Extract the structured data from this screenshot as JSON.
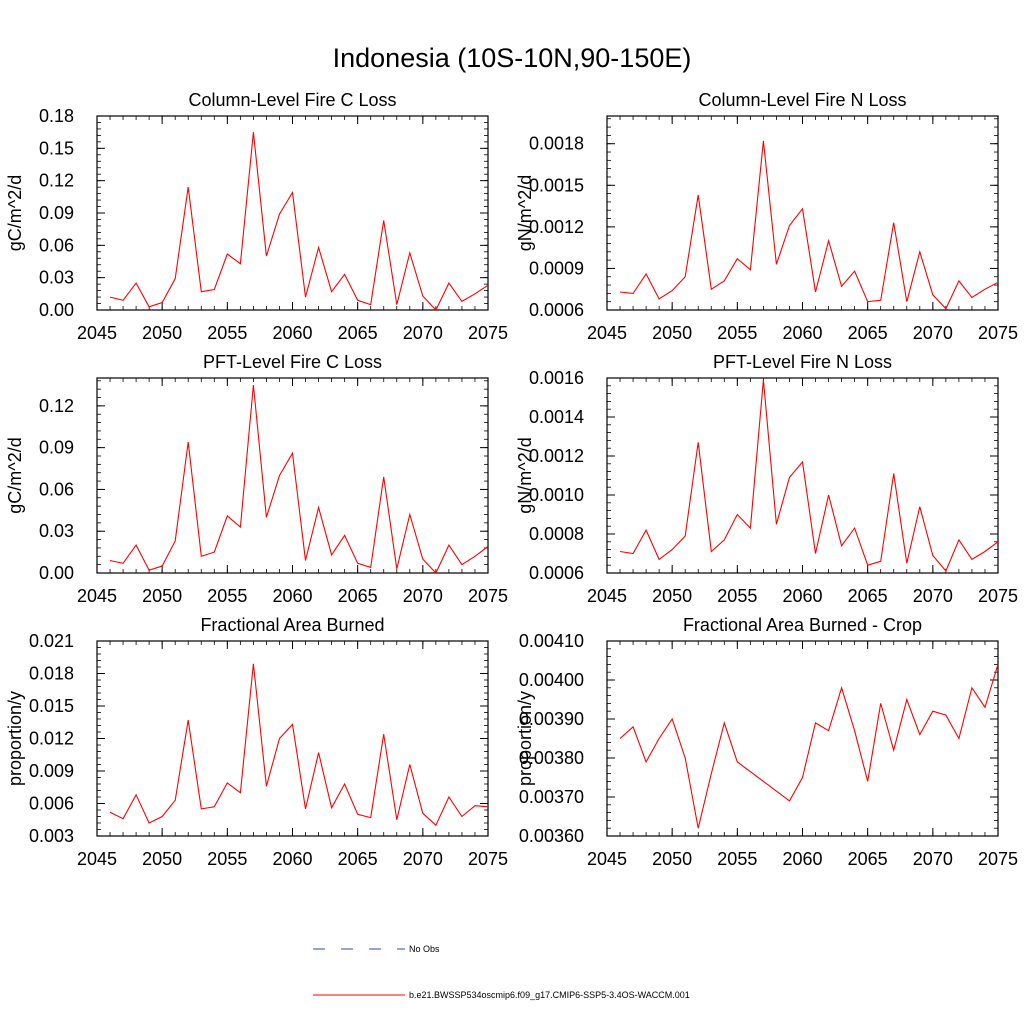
{
  "figure": {
    "title": "Indonesia (10S-10N,90-150E)",
    "line_color": "#ff0000",
    "obs_color": "#3344aa"
  },
  "legend": {
    "no_obs_label": "No Obs",
    "model_label": "b.e21.BWSSP534oscmip6.f09_g17.CMIP6-SSP5-3.4OS-WACCM.001"
  },
  "chart_data": [
    {
      "type": "line",
      "title": "Column-Level Fire C Loss",
      "ylabel": "gC/m^2/d",
      "xlim": [
        2045,
        2075
      ],
      "ylim": [
        0,
        0.18
      ],
      "xticks": [
        2045,
        2050,
        2055,
        2060,
        2065,
        2070,
        2075
      ],
      "xtick_labels": [
        "2045",
        "2050",
        "2055",
        "2060",
        "2065",
        "2070",
        "2075"
      ],
      "yticks": [
        0,
        0.03,
        0.06,
        0.09,
        0.12,
        0.15,
        0.18
      ],
      "ytick_labels": [
        "0.00",
        "0.03",
        "0.06",
        "0.09",
        "0.12",
        "0.15",
        "0.18"
      ],
      "x": [
        2046,
        2047,
        2048,
        2049,
        2050,
        2051,
        2052,
        2053,
        2054,
        2055,
        2056,
        2057,
        2058,
        2059,
        2060,
        2061,
        2062,
        2063,
        2064,
        2065,
        2066,
        2067,
        2068,
        2069,
        2070,
        2071,
        2072,
        2073,
        2074,
        2075
      ],
      "values": [
        0.012,
        0.009,
        0.025,
        0.003,
        0.007,
        0.029,
        0.114,
        0.017,
        0.019,
        0.052,
        0.043,
        0.165,
        0.05,
        0.089,
        0.109,
        0.012,
        0.058,
        0.017,
        0.033,
        0.009,
        0.005,
        0.083,
        0.005,
        0.053,
        0.013,
        0.0,
        0.025,
        0.008,
        0.015,
        0.023
      ]
    },
    {
      "type": "line",
      "title": "Column-Level Fire N Loss",
      "ylabel": "gN/m^2/d",
      "xlim": [
        2045,
        2075
      ],
      "ylim": [
        0.0006,
        0.002
      ],
      "xticks": [
        2045,
        2050,
        2055,
        2060,
        2065,
        2070,
        2075
      ],
      "xtick_labels": [
        "2045",
        "2050",
        "2055",
        "2060",
        "2065",
        "2070",
        "2075"
      ],
      "yticks": [
        0.0006,
        0.0009,
        0.0012,
        0.0015,
        0.0018
      ],
      "ytick_labels": [
        "0.0006",
        "0.0009",
        "0.0012",
        "0.0015",
        "0.0018"
      ],
      "x": [
        2046,
        2047,
        2048,
        2049,
        2050,
        2051,
        2052,
        2053,
        2054,
        2055,
        2056,
        2057,
        2058,
        2059,
        2060,
        2061,
        2062,
        2063,
        2064,
        2065,
        2066,
        2067,
        2068,
        2069,
        2070,
        2071,
        2072,
        2073,
        2074,
        2075
      ],
      "values": [
        0.00073,
        0.00072,
        0.00086,
        0.00068,
        0.00074,
        0.00084,
        0.00143,
        0.00075,
        0.00081,
        0.00097,
        0.00089,
        0.00182,
        0.00093,
        0.00121,
        0.00133,
        0.00073,
        0.0011,
        0.00077,
        0.00088,
        0.00066,
        0.00067,
        0.00123,
        0.00066,
        0.00102,
        0.00071,
        0.00061,
        0.00081,
        0.00069,
        0.00075,
        0.0008
      ]
    },
    {
      "type": "line",
      "title": "PFT-Level Fire C Loss",
      "ylabel": "gC/m^2/d",
      "xlim": [
        2045,
        2075
      ],
      "ylim": [
        0,
        0.14
      ],
      "xticks": [
        2045,
        2050,
        2055,
        2060,
        2065,
        2070,
        2075
      ],
      "xtick_labels": [
        "2045",
        "2050",
        "2055",
        "2060",
        "2065",
        "2070",
        "2075"
      ],
      "yticks": [
        0,
        0.03,
        0.06,
        0.09,
        0.12
      ],
      "ytick_labels": [
        "0.00",
        "0.03",
        "0.06",
        "0.09",
        "0.12"
      ],
      "x": [
        2046,
        2047,
        2048,
        2049,
        2050,
        2051,
        2052,
        2053,
        2054,
        2055,
        2056,
        2057,
        2058,
        2059,
        2060,
        2061,
        2062,
        2063,
        2064,
        2065,
        2066,
        2067,
        2068,
        2069,
        2070,
        2071,
        2072,
        2073,
        2074,
        2075
      ],
      "values": [
        0.009,
        0.007,
        0.02,
        0.002,
        0.005,
        0.023,
        0.094,
        0.012,
        0.015,
        0.041,
        0.033,
        0.135,
        0.04,
        0.07,
        0.086,
        0.009,
        0.047,
        0.013,
        0.027,
        0.007,
        0.004,
        0.069,
        0.003,
        0.042,
        0.01,
        0.0,
        0.02,
        0.006,
        0.012,
        0.019
      ]
    },
    {
      "type": "line",
      "title": "PFT-Level Fire N Loss",
      "ylabel": "gN/m^2/d",
      "xlim": [
        2045,
        2075
      ],
      "ylim": [
        0.0006,
        0.0016
      ],
      "xticks": [
        2045,
        2050,
        2055,
        2060,
        2065,
        2070,
        2075
      ],
      "xtick_labels": [
        "2045",
        "2050",
        "2055",
        "2060",
        "2065",
        "2070",
        "2075"
      ],
      "yticks": [
        0.0006,
        0.0008,
        0.001,
        0.0012,
        0.0014,
        0.0016
      ],
      "ytick_labels": [
        "0.0006",
        "0.0008",
        "0.0010",
        "0.0012",
        "0.0014",
        "0.0016"
      ],
      "x": [
        2046,
        2047,
        2048,
        2049,
        2050,
        2051,
        2052,
        2053,
        2054,
        2055,
        2056,
        2057,
        2058,
        2059,
        2060,
        2061,
        2062,
        2063,
        2064,
        2065,
        2066,
        2067,
        2068,
        2069,
        2070,
        2071,
        2072,
        2073,
        2074,
        2075
      ],
      "values": [
        0.00071,
        0.0007,
        0.00082,
        0.00067,
        0.00072,
        0.00079,
        0.00127,
        0.00071,
        0.00077,
        0.0009,
        0.00083,
        0.00159,
        0.00085,
        0.00109,
        0.00117,
        0.0007,
        0.001,
        0.00074,
        0.00083,
        0.00064,
        0.00066,
        0.00111,
        0.00065,
        0.00094,
        0.00069,
        0.00061,
        0.00077,
        0.00067,
        0.00071,
        0.00076
      ]
    },
    {
      "type": "line",
      "title": "Fractional Area Burned",
      "ylabel": "proportion/y",
      "xlim": [
        2045,
        2075
      ],
      "ylim": [
        0.003,
        0.021
      ],
      "xticks": [
        2045,
        2050,
        2055,
        2060,
        2065,
        2070,
        2075
      ],
      "xtick_labels": [
        "2045",
        "2050",
        "2055",
        "2060",
        "2065",
        "2070",
        "2075"
      ],
      "yticks": [
        0.003,
        0.006,
        0.009,
        0.012,
        0.015,
        0.018,
        0.021
      ],
      "ytick_labels": [
        "0.003",
        "0.006",
        "0.009",
        "0.012",
        "0.015",
        "0.018",
        "0.021"
      ],
      "x": [
        2046,
        2047,
        2048,
        2049,
        2050,
        2051,
        2052,
        2053,
        2054,
        2055,
        2056,
        2057,
        2058,
        2059,
        2060,
        2061,
        2062,
        2063,
        2064,
        2065,
        2066,
        2067,
        2068,
        2069,
        2070,
        2071,
        2072,
        2073,
        2074,
        2075
      ],
      "values": [
        0.0052,
        0.0046,
        0.0068,
        0.0042,
        0.0048,
        0.0063,
        0.0137,
        0.0055,
        0.0057,
        0.0079,
        0.007,
        0.0189,
        0.0076,
        0.012,
        0.0133,
        0.0055,
        0.0107,
        0.0056,
        0.0078,
        0.005,
        0.0047,
        0.0124,
        0.0045,
        0.0096,
        0.0051,
        0.004,
        0.0066,
        0.0048,
        0.0058,
        0.0057
      ]
    },
    {
      "type": "line",
      "title": "Fractional Area Burned - Crop",
      "ylabel": "proportion/y",
      "xlim": [
        2045,
        2075
      ],
      "ylim": [
        0.0036,
        0.0041
      ],
      "xticks": [
        2045,
        2050,
        2055,
        2060,
        2065,
        2070,
        2075
      ],
      "xtick_labels": [
        "2045",
        "2050",
        "2055",
        "2060",
        "2065",
        "2070",
        "2075"
      ],
      "yticks": [
        0.0036,
        0.0037,
        0.0038,
        0.0039,
        0.004,
        0.0041
      ],
      "ytick_labels": [
        "0.00360",
        "0.00370",
        "0.00380",
        "0.00390",
        "0.00400",
        "0.00410"
      ],
      "x": [
        2046,
        2047,
        2048,
        2049,
        2050,
        2051,
        2052,
        2053,
        2054,
        2055,
        2059,
        2060,
        2061,
        2062,
        2063,
        2064,
        2065,
        2066,
        2067,
        2068,
        2069,
        2070,
        2071,
        2072,
        2073,
        2074,
        2075
      ],
      "values": [
        0.00385,
        0.00388,
        0.00379,
        0.00385,
        0.0039,
        0.0038,
        0.00362,
        0.00376,
        0.00389,
        0.00379,
        0.00369,
        0.00375,
        0.00389,
        0.00387,
        0.00398,
        0.00387,
        0.00374,
        0.00394,
        0.00382,
        0.00395,
        0.00386,
        0.00392,
        0.00391,
        0.00385,
        0.00398,
        0.00393,
        0.00404
      ]
    }
  ]
}
